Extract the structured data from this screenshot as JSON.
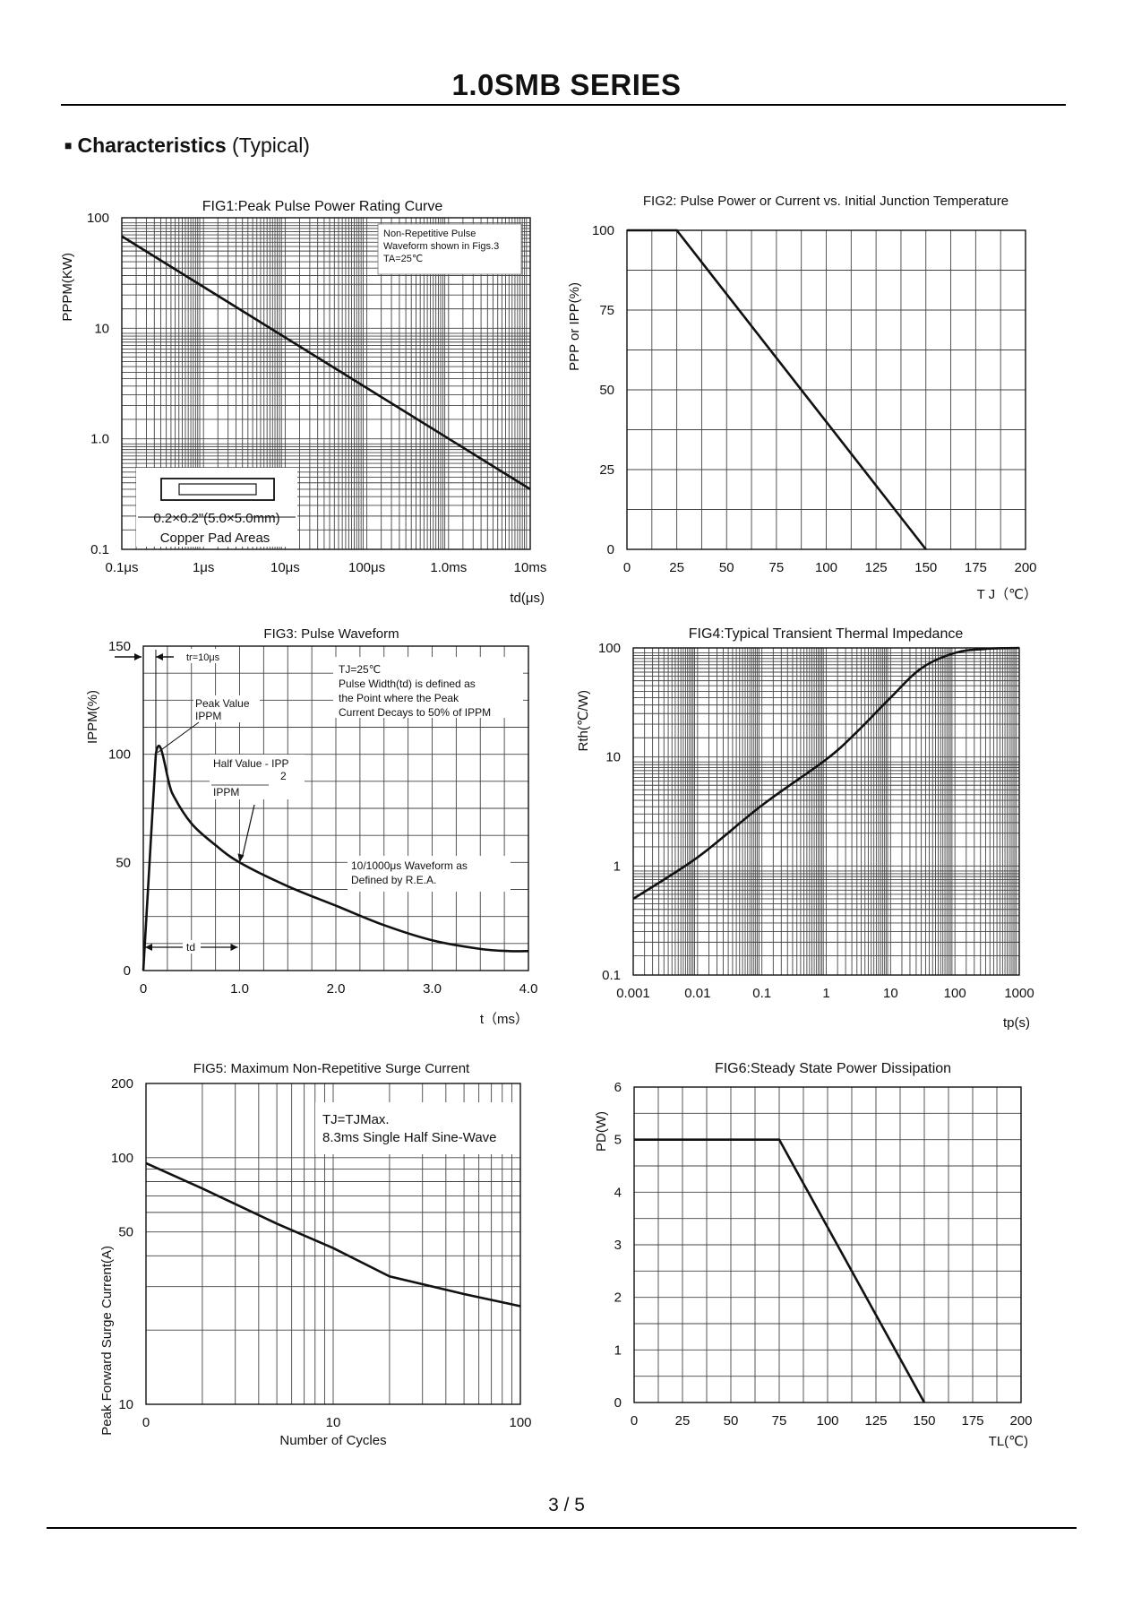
{
  "header": {
    "title": "1.0SMB SERIES",
    "section_bullet": "■",
    "section_bold": "Characteristics",
    "section_normal": " (Typical)"
  },
  "footer": {
    "page": "3 / 5"
  },
  "chart_data": [
    {
      "id": "fig1",
      "type": "line",
      "title": "FIG1:Peak Pulse Power Rating Curve",
      "xlabel": "td(μs)",
      "ylabel": "PPPM(KW)",
      "xscale": "log",
      "yscale": "log",
      "xlim": [
        0.1,
        10000
      ],
      "ylim": [
        0.1,
        100
      ],
      "xticks": [
        {
          "v": 0.1,
          "label": "0.1μs"
        },
        {
          "v": 1,
          "label": "1μs"
        },
        {
          "v": 10,
          "label": "10μs"
        },
        {
          "v": 100,
          "label": "100μs"
        },
        {
          "v": 1000,
          "label": "1.0ms"
        },
        {
          "v": 10000,
          "label": "10ms"
        }
      ],
      "yticks": [
        {
          "v": 0.1,
          "label": "0.1"
        },
        {
          "v": 1,
          "label": "1.0"
        },
        {
          "v": 10,
          "label": "10"
        },
        {
          "v": 100,
          "label": "100"
        }
      ],
      "grid": true,
      "series": [
        {
          "x": [
            0.1,
            10000
          ],
          "y": [
            68,
            0.35
          ]
        }
      ],
      "annotations": [
        "Non-Repetitive Pulse",
        "Waveform shown in Figs.3",
        "TA=25℃"
      ],
      "pad_labels": [
        "0.2×0.2\"(5.0×5.0mm)",
        "Copper Pad Areas"
      ]
    },
    {
      "id": "fig2",
      "type": "line",
      "title": "FIG2: Pulse Power or Current vs. Initial Junction Temperature",
      "xlabel": "T J（℃）",
      "ylabel": "PPP or IPP(%)",
      "xlim": [
        0,
        200
      ],
      "ylim": [
        0,
        100
      ],
      "xticks": [
        0,
        25,
        50,
        75,
        100,
        125,
        150,
        175,
        200
      ],
      "yticks": [
        0,
        25,
        50,
        75,
        100
      ],
      "grid": true,
      "series": [
        {
          "x": [
            0,
            25,
            150
          ],
          "y": [
            100,
            100,
            0
          ]
        }
      ]
    },
    {
      "id": "fig3",
      "type": "line",
      "title": "FIG3: Pulse Waveform",
      "xlabel": "t（ms）",
      "ylabel": "IPPM(%)",
      "xlim": [
        0,
        4.0
      ],
      "ylim": [
        0,
        150
      ],
      "xticks": [
        {
          "v": 0,
          "label": "0"
        },
        {
          "v": 1,
          "label": "1.0"
        },
        {
          "v": 2,
          "label": "2.0"
        },
        {
          "v": 3,
          "label": "3.0"
        },
        {
          "v": 4,
          "label": "4.0"
        }
      ],
      "yticks": [
        0,
        50,
        100,
        150
      ],
      "grid": true,
      "series": [
        {
          "x": [
            0,
            0.13,
            0.3,
            0.5,
            0.75,
            1.0,
            1.5,
            2.0,
            2.5,
            3.0,
            3.5,
            3.8,
            4.0
          ],
          "y": [
            0,
            100,
            82,
            68,
            58,
            50,
            39,
            30,
            21,
            14,
            10,
            9,
            9
          ]
        }
      ],
      "annotations": {
        "tr": "tr=10μs",
        "cond": [
          "TJ=25℃",
          "Pulse Width(td) is defined as",
          "the Point where the Peak",
          "Current Decays to 50% of IPPM"
        ],
        "peak": [
          "Peak Value",
          "IPPM"
        ],
        "half": [
          "Half Value - IPP",
          "2",
          "IPPM"
        ],
        "waveform": [
          "10/1000μs Waveform as",
          "Defined by R.E.A."
        ],
        "td": "td"
      }
    },
    {
      "id": "fig4",
      "type": "line",
      "title": "FIG4:Typical Transient Thermal Impedance",
      "xlabel": "tp(s)",
      "ylabel": "Rth(℃/W)",
      "xscale": "log",
      "yscale": "log",
      "xlim": [
        0.001,
        1000
      ],
      "ylim": [
        0.1,
        100
      ],
      "xticks": [
        {
          "v": 0.001,
          "label": "0.001"
        },
        {
          "v": 0.01,
          "label": "0.01"
        },
        {
          "v": 0.1,
          "label": "0.1"
        },
        {
          "v": 1,
          "label": "1"
        },
        {
          "v": 10,
          "label": "10"
        },
        {
          "v": 100,
          "label": "100"
        },
        {
          "v": 1000,
          "label": "1000"
        }
      ],
      "yticks": [
        {
          "v": 0.1,
          "label": "0.1"
        },
        {
          "v": 1,
          "label": "1"
        },
        {
          "v": 10,
          "label": "10"
        },
        {
          "v": 100,
          "label": "100"
        }
      ],
      "grid": true,
      "series": [
        {
          "x": [
            0.001,
            0.01,
            0.1,
            1,
            3,
            10,
            30,
            100,
            300,
            1000
          ],
          "y": [
            0.5,
            1.2,
            3.6,
            9.5,
            17,
            35,
            65,
            90,
            98,
            100
          ]
        }
      ]
    },
    {
      "id": "fig5",
      "type": "line",
      "title": "FIG5: Maximum Non-Repetitive Surge Current",
      "xlabel": "Number of Cycles",
      "ylabel": "Peak Forward Surge Current(A)",
      "xscale": "log",
      "yscale": "log",
      "xlim": [
        1,
        100
      ],
      "ylim": [
        10,
        200
      ],
      "xticks": [
        {
          "v": 1,
          "label": "0"
        },
        {
          "v": 10,
          "label": "10"
        },
        {
          "v": 100,
          "label": "100"
        }
      ],
      "yticks": [
        {
          "v": 10,
          "label": "10"
        },
        {
          "v": 50,
          "label": "50"
        },
        {
          "v": 100,
          "label": "100"
        },
        {
          "v": 200,
          "label": "200"
        }
      ],
      "grid": true,
      "series": [
        {
          "x": [
            1,
            2,
            5,
            10,
            20,
            50,
            100
          ],
          "y": [
            95,
            75,
            54,
            43,
            33,
            28,
            25
          ]
        }
      ],
      "annotations": [
        "TJ=TJMax.",
        "8.3ms Single Half Sine-Wave"
      ]
    },
    {
      "id": "fig6",
      "type": "line",
      "title": "FIG6:Steady State Power Dissipation",
      "xlabel": "TL(℃)",
      "ylabel": "PD(W)",
      "xlim": [
        0,
        200
      ],
      "ylim": [
        0,
        6
      ],
      "xticks": [
        0,
        25,
        50,
        75,
        100,
        125,
        150,
        175,
        200
      ],
      "yticks": [
        0,
        1,
        2,
        3,
        4,
        5,
        6
      ],
      "grid": true,
      "series": [
        {
          "x": [
            0,
            75,
            150
          ],
          "y": [
            5,
            5,
            0
          ]
        }
      ]
    }
  ]
}
